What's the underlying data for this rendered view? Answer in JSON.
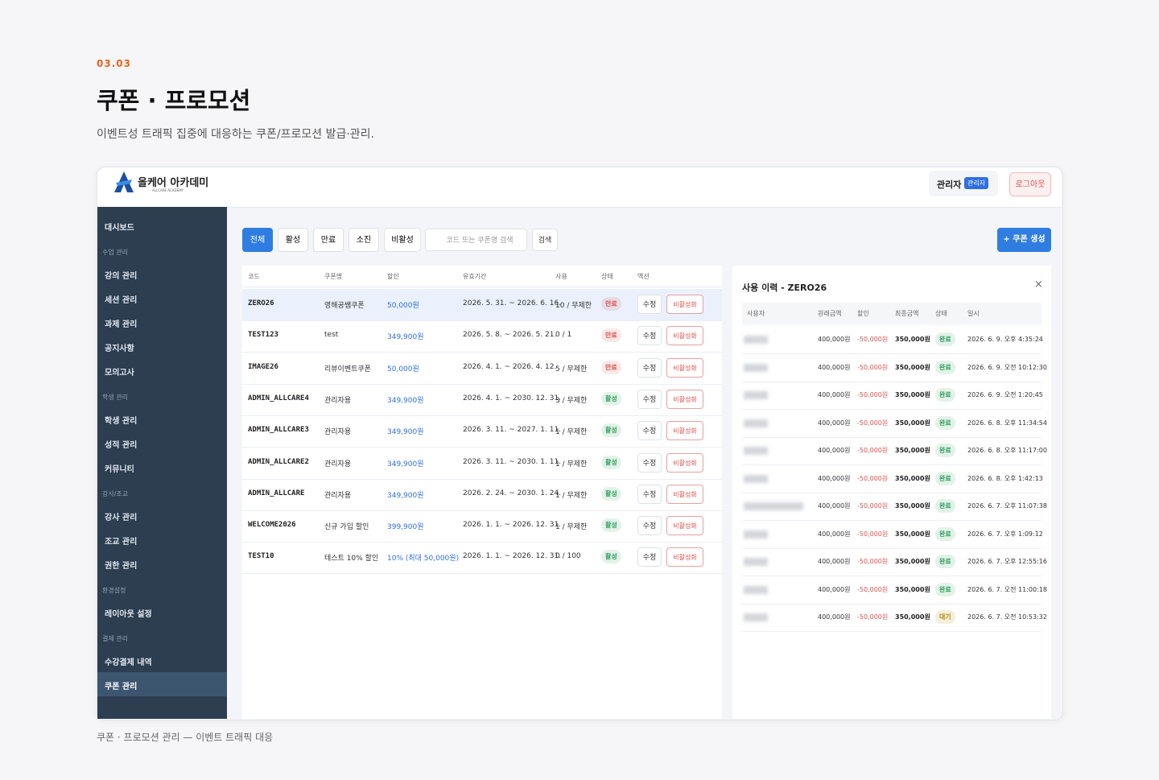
{
  "header": {
    "section": "03.03",
    "title": "쿠폰 · 프로모션",
    "subtitle": "이벤트성 트래픽 집중에 대응하는 쿠폰/프로모션 발급·관리."
  },
  "caption": "쿠폰 · 프로모션 관리 — 이벤트 트래픽 대응",
  "app": {
    "logo": "올케어 아카데미",
    "logo_sub": "ALLCARE ACADEMY",
    "user": "관리자",
    "role_badge": "관리자",
    "logout": "로그아웃",
    "sidebar": {
      "top": "대시보드",
      "groups": [
        {
          "title": "수업 관리",
          "items": [
            "강의 관리",
            "세션 관리",
            "과제 관리",
            "공지사항",
            "모의고사"
          ]
        },
        {
          "title": "학생 관리",
          "items": [
            "학생 관리",
            "성적 관리",
            "커뮤니티"
          ]
        },
        {
          "title": "강사/조교",
          "items": [
            "강사 관리",
            "조교 관리",
            "권한 관리"
          ]
        },
        {
          "title": "환경설정",
          "items": [
            "레이아웃 설정"
          ]
        },
        {
          "title": "결제 관리",
          "items": [
            "수강결제 내역",
            "쿠폰 관리"
          ]
        }
      ]
    },
    "filters": [
      "전체",
      "활성",
      "만료",
      "소진",
      "비활성"
    ],
    "search_placeholder": "코드 또는 쿠폰명 검색",
    "search_button": "검색",
    "create_button": "+ 쿠폰 생성",
    "coupon_table": {
      "columns": [
        "코드",
        "쿠폰명",
        "할인",
        "유효기간",
        "사용",
        "상태",
        "액션"
      ],
      "rows": [
        {
          "code": "ZERO26",
          "name": "영해공쌤쿠폰",
          "discount": "50,000원",
          "period": "2026. 5. 31. ~ 2026. 6. 16.",
          "usage": "10 / 무제한",
          "status": "만료",
          "status_color": "#d9534f",
          "edit": "수정",
          "deactivate": "비활성화"
        },
        {
          "code": "TEST123",
          "name": "test",
          "discount": "349,900원",
          "period": "2026. 5. 8. ~ 2026. 5. 21.",
          "usage": "0 / 1",
          "status": "만료",
          "status_color": "#d9534f",
          "edit": "수정",
          "deactivate": "비활성화"
        },
        {
          "code": "IMAGE26",
          "name": "리뷰이벤트쿠폰",
          "discount": "50,000원",
          "period": "2026. 4. 1. ~ 2026. 4. 12.",
          "usage": "5 / 무제한",
          "status": "만료",
          "status_color": "#d9534f",
          "edit": "수정",
          "deactivate": "비활성화"
        },
        {
          "code": "ADMIN_ALLCARE4",
          "name": "관리자용",
          "discount": "349,900원",
          "period": "2026. 4. 1. ~ 2030. 12. 31.",
          "usage": "3 / 무제한",
          "status": "활성",
          "status_color": "#2e9e5b",
          "edit": "수정",
          "deactivate": "비활성화"
        },
        {
          "code": "ADMIN_ALLCARE3",
          "name": "관리자용",
          "discount": "349,900원",
          "period": "2026. 3. 11. ~ 2027. 1. 11.",
          "usage": "1 / 무제한",
          "status": "활성",
          "status_color": "#2e9e5b",
          "edit": "수정",
          "deactivate": "비활성화"
        },
        {
          "code": "ADMIN_ALLCARE2",
          "name": "관리자용",
          "discount": "349,900원",
          "period": "2026. 3. 11. ~ 2030. 1. 11.",
          "usage": "1 / 무제한",
          "status": "활성",
          "status_color": "#2e9e5b",
          "edit": "수정",
          "deactivate": "비활성화"
        },
        {
          "code": "ADMIN_ALLCARE",
          "name": "관리자용",
          "discount": "349,900원",
          "period": "2026. 2. 24. ~ 2030. 1. 24.",
          "usage": "1 / 무제한",
          "status": "활성",
          "status_color": "#2e9e5b",
          "edit": "수정",
          "deactivate": "비활성화"
        },
        {
          "code": "WELCOME2026",
          "name": "신규 가입 할인",
          "discount": "399,900원",
          "period": "2026. 1. 1. ~ 2026. 12. 31.",
          "usage": "1 / 무제한",
          "status": "활성",
          "status_color": "#2e9e5b",
          "edit": "수정",
          "deactivate": "비활성화"
        },
        {
          "code": "TEST10",
          "name": "테스트 10% 할인",
          "discount": "10% (최대 50,000원)",
          "period": "2026. 1. 1. ~ 2026. 12. 31.",
          "usage": "0 / 100",
          "status": "활성",
          "status_color": "#2e9e5b",
          "edit": "수정",
          "deactivate": "비활성화"
        }
      ]
    },
    "history": {
      "title": "사용 이력 - ZERO26",
      "close": "×",
      "columns": [
        "사용자",
        "원래금액",
        "할인",
        "최종금액",
        "상태",
        "일시"
      ],
      "rows": [
        {
          "original": "400,000원",
          "discount": "-50,000원",
          "final": "350,000원",
          "status": "완료",
          "status_color": "#2e9e5b",
          "time": "2026. 6. 9. 오후 4:35:24"
        },
        {
          "original": "400,000원",
          "discount": "-50,000원",
          "final": "350,000원",
          "status": "완료",
          "status_color": "#2e9e5b",
          "time": "2026. 6. 9. 오전 10:12:30"
        },
        {
          "original": "400,000원",
          "discount": "-50,000원",
          "final": "350,000원",
          "status": "완료",
          "status_color": "#2e9e5b",
          "time": "2026. 6. 9. 오전 1:20:45"
        },
        {
          "original": "400,000원",
          "discount": "-50,000원",
          "final": "350,000원",
          "status": "완료",
          "status_color": "#2e9e5b",
          "time": "2026. 6. 8. 오후 11:34:54"
        },
        {
          "original": "400,000원",
          "discount": "-50,000원",
          "final": "350,000원",
          "status": "완료",
          "status_color": "#2e9e5b",
          "time": "2026. 6. 8. 오후 11:17:00"
        },
        {
          "original": "400,000원",
          "discount": "-50,000원",
          "final": "350,000원",
          "status": "완료",
          "status_color": "#2e9e5b",
          "time": "2026. 6. 8. 오후 1:42:13"
        },
        {
          "original": "400,000원",
          "discount": "-50,000원",
          "final": "350,000원",
          "status": "완료",
          "status_color": "#2e9e5b",
          "time": "2026. 6. 7. 오후 11:07:38"
        },
        {
          "original": "400,000원",
          "discount": "-50,000원",
          "final": "350,000원",
          "status": "완료",
          "status_color": "#2e9e5b",
          "time": "2026. 6. 7. 오후 1:09:12"
        },
        {
          "original": "400,000원",
          "discount": "-50,000원",
          "final": "350,000원",
          "status": "완료",
          "status_color": "#2e9e5b",
          "time": "2026. 6. 7. 오후 12:55:16"
        },
        {
          "original": "400,000원",
          "discount": "-50,000원",
          "final": "350,000원",
          "status": "완료",
          "status_color": "#2e9e5b",
          "time": "2026. 6. 7. 오전 11:00:18"
        },
        {
          "original": "400,000원",
          "discount": "-50,000원",
          "final": "350,000원",
          "status": "대기",
          "status_color": "#b08a00",
          "time": "2026. 6. 7. 오전 10:53:32"
        }
      ]
    }
  }
}
